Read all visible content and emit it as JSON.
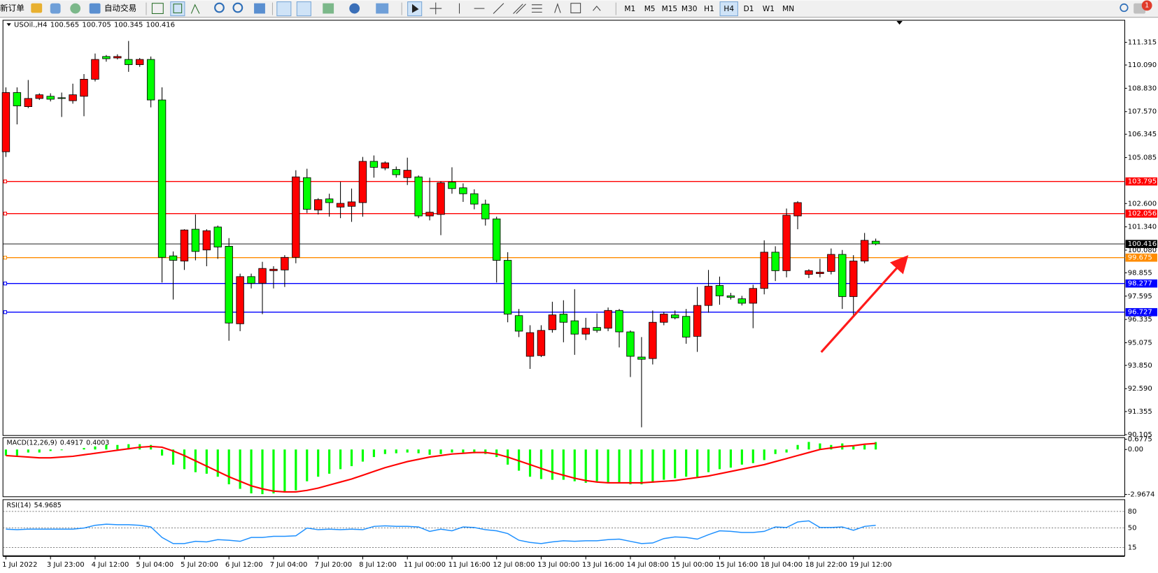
{
  "toolbar": {
    "new_order": "新订单",
    "auto_trading": "自动交易",
    "timeframes": [
      "M1",
      "M5",
      "M15",
      "M30",
      "H1",
      "H4",
      "D1",
      "W1",
      "MN"
    ],
    "active_timeframe": "H4",
    "notifications": 1
  },
  "chart_data": [
    {
      "type": "candlestick",
      "title": "USOil.,H4",
      "categories": [
        "1 Jul 2022",
        null,
        null,
        null,
        "3 Jul 23:00",
        null,
        null,
        null,
        "4 Jul 12:00",
        null,
        null,
        null,
        "5 Jul 04:00",
        null,
        null,
        null,
        "5 Jul 20:00",
        null,
        null,
        null,
        "6 Jul 12:00",
        null,
        null,
        null,
        "7 Jul 04:00",
        null,
        null,
        null,
        "7 Jul 20:00",
        null,
        null,
        null,
        "8 Jul 12:00",
        null,
        null,
        null,
        "11 Jul 00:00",
        null,
        null,
        null,
        "11 Jul 16:00",
        null,
        null,
        null,
        "12 Jul 08:00",
        null,
        null,
        null,
        "13 Jul 00:00",
        null,
        null,
        null,
        "13 Jul 16:00",
        null,
        null,
        null,
        "14 Jul 08:00",
        null,
        null,
        null,
        "15 Jul 00:00",
        null,
        null,
        null,
        "15 Jul 16:00",
        null,
        null,
        null,
        "18 Jul 04:00",
        null,
        null,
        null,
        "18 Jul 22:00",
        null,
        null,
        null,
        "19 Jul 12:00",
        null,
        null
      ],
      "open": [
        105.4,
        108.6,
        107.84,
        108.28,
        108.4,
        108.32,
        108.16,
        108.4,
        109.32,
        110.55,
        110.47,
        110.39,
        110.11,
        110.39,
        108.2,
        99.77,
        99.49,
        101.21,
        100.09,
        101.33,
        100.29,
        96.1,
        98.65,
        98.29,
        98.97,
        99.01,
        99.69,
        104.0,
        102.25,
        102.85,
        102.41,
        102.45,
        102.65,
        104.88,
        104.52,
        104.44,
        104.0,
        104.04,
        101.93,
        102.01,
        103.76,
        103.45,
        103.13,
        102.57,
        101.77,
        99.53,
        96.54,
        94.34,
        94.38,
        95.78,
        96.62,
        96.26,
        95.54,
        95.9,
        95.86,
        96.82,
        95.66,
        94.3,
        94.22,
        96.18,
        96.58,
        96.5,
        95.42,
        97.09,
        98.17,
        97.61,
        97.45,
        97.21,
        98.01,
        99.97,
        98.97,
        101.93,
        98.77,
        98.81,
        98.93,
        99.85,
        97.57,
        99.49,
        100.565
      ],
      "high": [
        108.88,
        108.88,
        109.28,
        108.56,
        108.56,
        108.6,
        109.08,
        109.6,
        110.71,
        110.63,
        110.67,
        111.39,
        110.47,
        110.55,
        108.88,
        100.01,
        101.21,
        102.01,
        101.21,
        101.41,
        100.73,
        98.81,
        98.81,
        99.45,
        99.21,
        99.81,
        104.4,
        104.48,
        102.89,
        103.13,
        103.77,
        103.41,
        105.12,
        105.2,
        104.88,
        104.6,
        105.08,
        104.12,
        104.0,
        103.8,
        104.56,
        103.69,
        103.37,
        102.81,
        101.89,
        99.97,
        96.9,
        96.02,
        96.02,
        97.29,
        97.37,
        97.97,
        96.42,
        96.66,
        96.98,
        96.9,
        95.74,
        95.38,
        96.82,
        96.74,
        96.82,
        96.9,
        98.09,
        99.01,
        98.65,
        97.77,
        97.61,
        98.21,
        100.61,
        100.29,
        102.33,
        102.73,
        99.05,
        99.61,
        100.17,
        100.09,
        99.81,
        101.01,
        100.705
      ],
      "low": [
        105.12,
        106.88,
        107.76,
        108.2,
        108.12,
        107.28,
        108.0,
        107.32,
        109.2,
        110.27,
        110.39,
        109.72,
        109.99,
        107.8,
        98.33,
        97.41,
        99.01,
        99.53,
        99.21,
        99.61,
        95.18,
        95.7,
        98.01,
        96.62,
        98.01,
        98.09,
        99.37,
        102.09,
        102.01,
        101.89,
        101.81,
        101.61,
        101.89,
        104.0,
        104.4,
        104.0,
        103.6,
        101.81,
        101.69,
        100.89,
        103.13,
        102.69,
        102.29,
        101.41,
        98.33,
        96.18,
        95.38,
        93.66,
        94.3,
        95.62,
        95.1,
        94.42,
        95.22,
        95.62,
        95.7,
        94.82,
        93.22,
        90.5,
        93.9,
        96.02,
        96.34,
        95.02,
        94.58,
        96.7,
        97.13,
        97.41,
        97.09,
        95.86,
        97.69,
        98.41,
        98.61,
        101.21,
        98.57,
        98.61,
        98.77,
        96.9,
        96.54,
        99.37,
        100.345
      ],
      "close": [
        108.6,
        107.88,
        108.28,
        108.48,
        108.24,
        108.28,
        108.48,
        109.32,
        110.39,
        110.43,
        110.55,
        110.11,
        110.39,
        108.2,
        99.69,
        99.53,
        101.17,
        100.01,
        101.13,
        100.25,
        96.14,
        98.65,
        98.29,
        99.09,
        99.05,
        99.69,
        104.04,
        102.29,
        102.81,
        102.65,
        102.61,
        102.69,
        104.88,
        104.56,
        104.8,
        104.16,
        104.4,
        101.93,
        102.13,
        103.72,
        103.41,
        103.13,
        102.57,
        101.77,
        99.53,
        96.62,
        95.7,
        95.62,
        95.74,
        96.58,
        96.18,
        95.54,
        95.86,
        95.74,
        96.82,
        95.66,
        94.34,
        94.18,
        96.18,
        96.62,
        96.42,
        95.38,
        97.09,
        98.13,
        97.61,
        97.53,
        97.21,
        98.01,
        99.97,
        98.97,
        101.97,
        102.65,
        98.97,
        98.89,
        99.85,
        97.57,
        99.49,
        100.61,
        100.416
      ],
      "up_color": "#ff0000",
      "down_color": "#00ff00",
      "wick_color": "#000000",
      "ylim": [
        90.06,
        112.51
      ],
      "yticks": [
        111.315,
        {
          "value": 110.09,
          "label": "110.090"
        },
        {
          "value": 108.83,
          "label": "108.830"
        },
        {
          "value": 107.57,
          "label": "107.570"
        },
        106.345,
        105.085,
        {
          "value": 102.6,
          "label": "102.600"
        },
        {
          "value": 101.34,
          "label": "101.340"
        },
        {
          "value": 100.08,
          "label": "100.080"
        },
        98.855,
        97.595,
        96.335,
        95.075,
        {
          "value": 93.85,
          "label": "93.850"
        },
        {
          "value": 92.59,
          "label": "92.590"
        },
        91.355,
        90.105
      ],
      "hlines": [
        {
          "value": 103.795,
          "color": "#ff0000"
        },
        {
          "value": 102.056,
          "color": "#ff0000"
        },
        {
          "value": 99.675,
          "color": "#ff8c00"
        },
        {
          "value": 98.277,
          "color": "#0000ff"
        },
        {
          "value": 96.727,
          "color": "#0000ff"
        }
      ],
      "bid_line_color": "#000000"
    },
    {
      "type": "macd",
      "title": "MACD(12,26,9)",
      "histogram": [
        -0.4,
        -0.4,
        -0.2,
        -0.2,
        -0.1,
        -0.05,
        0,
        0.1,
        0.2,
        0.3,
        0.3,
        0.35,
        0.35,
        0.3,
        -0.4,
        -1.0,
        -1.3,
        -1.5,
        -1.6,
        -1.8,
        -2.3,
        -2.6,
        -2.9,
        -2.95,
        -2.9,
        -2.85,
        -2.7,
        -2.1,
        -1.8,
        -1.6,
        -1.3,
        -1.1,
        -0.8,
        -0.5,
        -0.3,
        -0.25,
        -0.2,
        -0.25,
        -0.35,
        -0.3,
        -0.2,
        -0.2,
        -0.25,
        -0.3,
        -0.5,
        -1.0,
        -1.4,
        -1.8,
        -1.95,
        -2.0,
        -2.0,
        -2.1,
        -2.2,
        -2.1,
        -2.2,
        -2.2,
        -2.3,
        -2.3,
        -2.2,
        -2.0,
        -1.9,
        -1.8,
        -1.8,
        -1.5,
        -1.3,
        -1.2,
        -1.0,
        -0.9,
        -0.7,
        -0.3,
        -0.2,
        0.3,
        0.5,
        0.4,
        0.3,
        0.4,
        0.2,
        0.3,
        0.4917
      ],
      "signal": [
        -0.4,
        -0.45,
        -0.5,
        -0.55,
        -0.55,
        -0.5,
        -0.45,
        -0.35,
        -0.25,
        -0.15,
        -0.05,
        0.05,
        0.15,
        0.2,
        0.15,
        -0.1,
        -0.4,
        -0.75,
        -1.1,
        -1.45,
        -1.8,
        -2.1,
        -2.4,
        -2.6,
        -2.75,
        -2.8,
        -2.8,
        -2.7,
        -2.55,
        -2.35,
        -2.15,
        -1.95,
        -1.7,
        -1.45,
        -1.2,
        -1.0,
        -0.8,
        -0.65,
        -0.5,
        -0.4,
        -0.3,
        -0.25,
        -0.2,
        -0.2,
        -0.3,
        -0.5,
        -0.75,
        -1.0,
        -1.25,
        -1.5,
        -1.7,
        -1.9,
        -2.05,
        -2.15,
        -2.2,
        -2.2,
        -2.2,
        -2.2,
        -2.15,
        -2.1,
        -2.05,
        -1.95,
        -1.85,
        -1.75,
        -1.6,
        -1.45,
        -1.3,
        -1.15,
        -1.0,
        -0.8,
        -0.6,
        -0.4,
        -0.2,
        0,
        0.1,
        0.2,
        0.25,
        0.35,
        0.4003
      ],
      "histogram_color": "#00ff00",
      "signal_color": "#ff0000",
      "ylim": [
        -3.07,
        0.73
      ],
      "yticks": [
        0.6775,
        {
          "value": 0,
          "label": "0.00"
        },
        -2.9674
      ]
    },
    {
      "type": "rsi",
      "title": "RSI(14)",
      "values": [
        48,
        47,
        48,
        48,
        48,
        48,
        48,
        50,
        55,
        57,
        56,
        56,
        55,
        52,
        33,
        22,
        22,
        26,
        25,
        29,
        28,
        26,
        33,
        33,
        35,
        35,
        36,
        50,
        47,
        48,
        47,
        48,
        47,
        53,
        54,
        53,
        53,
        52,
        44,
        48,
        45,
        52,
        51,
        47,
        45,
        40,
        28,
        24,
        22,
        25,
        27,
        26,
        27,
        27,
        29,
        30,
        26,
        22,
        23,
        31,
        34,
        33,
        30,
        38,
        45,
        44,
        42,
        42,
        44,
        52,
        51,
        61,
        63,
        51,
        51,
        52,
        46,
        53,
        54.9685
      ],
      "color": "#1e90ff",
      "ylim": [
        0,
        100
      ],
      "yticks": [
        80,
        50,
        15
      ],
      "grid": "dashed"
    }
  ]
}
